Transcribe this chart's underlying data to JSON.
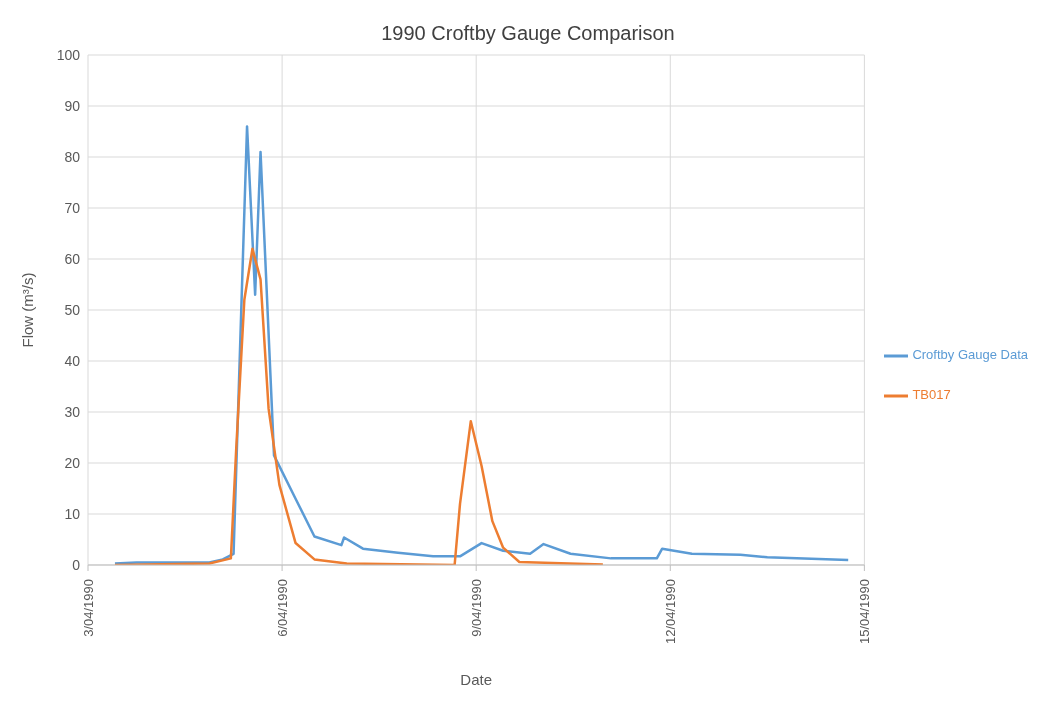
{
  "chart_data": {
    "type": "line",
    "title": "1990 Croftby Gauge Comparison",
    "xlabel": "Date",
    "ylabel": "Flow (m³/s)",
    "xlim": [
      "1990-04-03",
      "1990-04-15"
    ],
    "xticks": [
      {
        "value": "1990-04-03",
        "label": "3/04/1990"
      },
      {
        "value": "1990-04-06",
        "label": "6/04/1990"
      },
      {
        "value": "1990-04-09",
        "label": "9/04/1990"
      },
      {
        "value": "1990-04-12",
        "label": "12/04/1990"
      },
      {
        "value": "1990-04-15",
        "label": "15/04/1990"
      }
    ],
    "ylim": [
      0,
      100
    ],
    "yticks": [
      0,
      10,
      20,
      30,
      40,
      50,
      60,
      70,
      80,
      90,
      100
    ],
    "grid": true,
    "legend": "right",
    "marker": "none",
    "line_style": "solid",
    "series": [
      {
        "name": "Croftby Gauge Data",
        "color": "#5b9bd5",
        "x": [
          "1990-04-03T10:00",
          "1990-04-03T18:00",
          "1990-04-04T21:00",
          "1990-04-05T02:00",
          "1990-04-05T06:00",
          "1990-04-05T11:00",
          "1990-04-05T14:00",
          "1990-04-05T16:00",
          "1990-04-05T21:00",
          "1990-04-06T05:00",
          "1990-04-06T12:00",
          "1990-04-06T22:00",
          "1990-04-06T23:00",
          "1990-04-07T06:00",
          "1990-04-07T19:00",
          "1990-04-08T08:00",
          "1990-04-08T18:00",
          "1990-04-09T02:00",
          "1990-04-09T10:00",
          "1990-04-09T20:00",
          "1990-04-10T01:00",
          "1990-04-10T11:00",
          "1990-04-11T02:00",
          "1990-04-11T19:00",
          "1990-04-11T21:00",
          "1990-04-12T08:00",
          "1990-04-13T02:00",
          "1990-04-13T12:00",
          "1990-04-14T18:00"
        ],
        "values": [
          0.3,
          0.5,
          0.5,
          1.1,
          2.2,
          86,
          53,
          81,
          21.5,
          13,
          5.6,
          3.9,
          5.4,
          3.2,
          2.4,
          1.7,
          1.7,
          4.3,
          2.8,
          2.2,
          4.1,
          2.2,
          1.3,
          1.3,
          3.2,
          2.2,
          2.0,
          1.5,
          1.0
        ]
      },
      {
        "name": "TB017",
        "color": "#ed7d31",
        "x": [
          "1990-04-03T10:00",
          "1990-04-04T21:00",
          "1990-04-05T05:00",
          "1990-04-05T07:00",
          "1990-04-05T10:00",
          "1990-04-05T13:00",
          "1990-04-05T16:00",
          "1990-04-05T19:00",
          "1990-04-05T23:00",
          "1990-04-06T05:00",
          "1990-04-06T12:00",
          "1990-04-07T00:00",
          "1990-04-08T16:00",
          "1990-04-08T18:00",
          "1990-04-08T22:00",
          "1990-04-09T02:00",
          "1990-04-09T06:00",
          "1990-04-09T10:00",
          "1990-04-09T16:00",
          "1990-04-10T23:00"
        ],
        "values": [
          0,
          0.3,
          1.3,
          23,
          52,
          62,
          56,
          30.6,
          15.7,
          4.3,
          1.1,
          0.3,
          0,
          12,
          28.2,
          19.4,
          8.6,
          3.4,
          0.6,
          0.1
        ]
      }
    ]
  }
}
